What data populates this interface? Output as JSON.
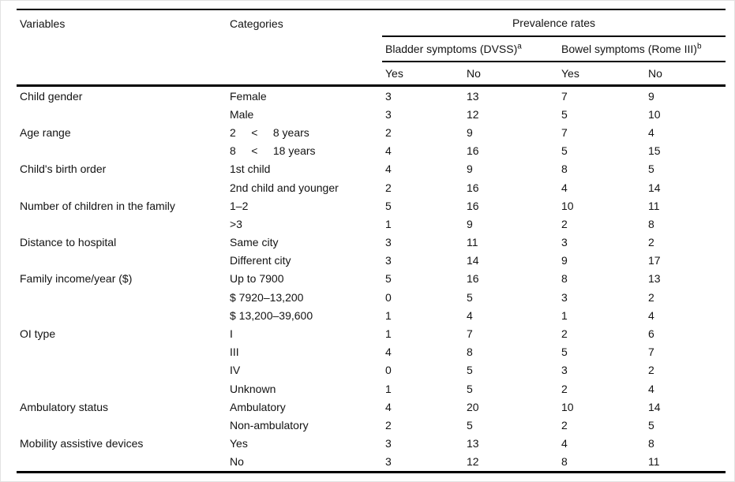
{
  "page": {
    "background": "#ffffff",
    "frame_color": "#e2e2e2",
    "rule_color": "#000000",
    "text_color": "#131313"
  },
  "table": {
    "headers": {
      "variables": "Variables",
      "categories": "Categories",
      "spanner": "Prevalence rates",
      "groups": [
        {
          "label": "Bladder symptoms (DVSS)",
          "sup": "a"
        },
        {
          "label": "Bowel symptoms (Rome III)",
          "sup": "b"
        }
      ],
      "subheaders": [
        "Yes",
        "No",
        "Yes",
        "No"
      ]
    },
    "rows": [
      {
        "variable": "Child gender",
        "category": "Female",
        "values": [
          3,
          13,
          7,
          9
        ]
      },
      {
        "variable": "",
        "category": "Male",
        "values": [
          3,
          12,
          5,
          10
        ]
      },
      {
        "variable": "Age range",
        "category": "2     <     8 years",
        "values": [
          2,
          9,
          7,
          4
        ]
      },
      {
        "variable": "",
        "category": "8     <     18 years",
        "values": [
          4,
          16,
          5,
          15
        ]
      },
      {
        "variable": "Child's birth order",
        "category": "1st child",
        "values": [
          4,
          9,
          8,
          5
        ]
      },
      {
        "variable": "",
        "category": "2nd child and younger",
        "values": [
          2,
          16,
          4,
          14
        ]
      },
      {
        "variable": "Number of children in the family",
        "category": "1–2",
        "values": [
          5,
          16,
          10,
          11
        ]
      },
      {
        "variable": "",
        "category": ">3",
        "values": [
          1,
          9,
          2,
          8
        ]
      },
      {
        "variable": "Distance to hospital",
        "category": "Same city",
        "values": [
          3,
          11,
          3,
          2
        ]
      },
      {
        "variable": "",
        "category": "Different city",
        "values": [
          3,
          14,
          9,
          17
        ]
      },
      {
        "variable": "Family income/year ($)",
        "category": "Up to 7900",
        "values": [
          5,
          16,
          8,
          13
        ]
      },
      {
        "variable": "",
        "category": "$ 7920–13,200",
        "values": [
          0,
          5,
          3,
          2
        ]
      },
      {
        "variable": "",
        "category": "$ 13,200–39,600",
        "values": [
          1,
          4,
          1,
          4
        ]
      },
      {
        "variable": "OI type",
        "category": "I",
        "values": [
          1,
          7,
          2,
          6
        ]
      },
      {
        "variable": "",
        "category": "III",
        "values": [
          4,
          8,
          5,
          7
        ]
      },
      {
        "variable": "",
        "category": "IV",
        "values": [
          0,
          5,
          3,
          2
        ]
      },
      {
        "variable": "",
        "category": "Unknown",
        "values": [
          1,
          5,
          2,
          4
        ]
      },
      {
        "variable": "Ambulatory status",
        "category": "Ambulatory",
        "values": [
          4,
          20,
          10,
          14
        ]
      },
      {
        "variable": "",
        "category": "Non-ambulatory",
        "values": [
          2,
          5,
          2,
          5
        ]
      },
      {
        "variable": "Mobility assistive devices",
        "category": "Yes",
        "values": [
          3,
          13,
          4,
          8
        ]
      },
      {
        "variable": "",
        "category": "No",
        "values": [
          3,
          12,
          8,
          11
        ]
      }
    ]
  }
}
